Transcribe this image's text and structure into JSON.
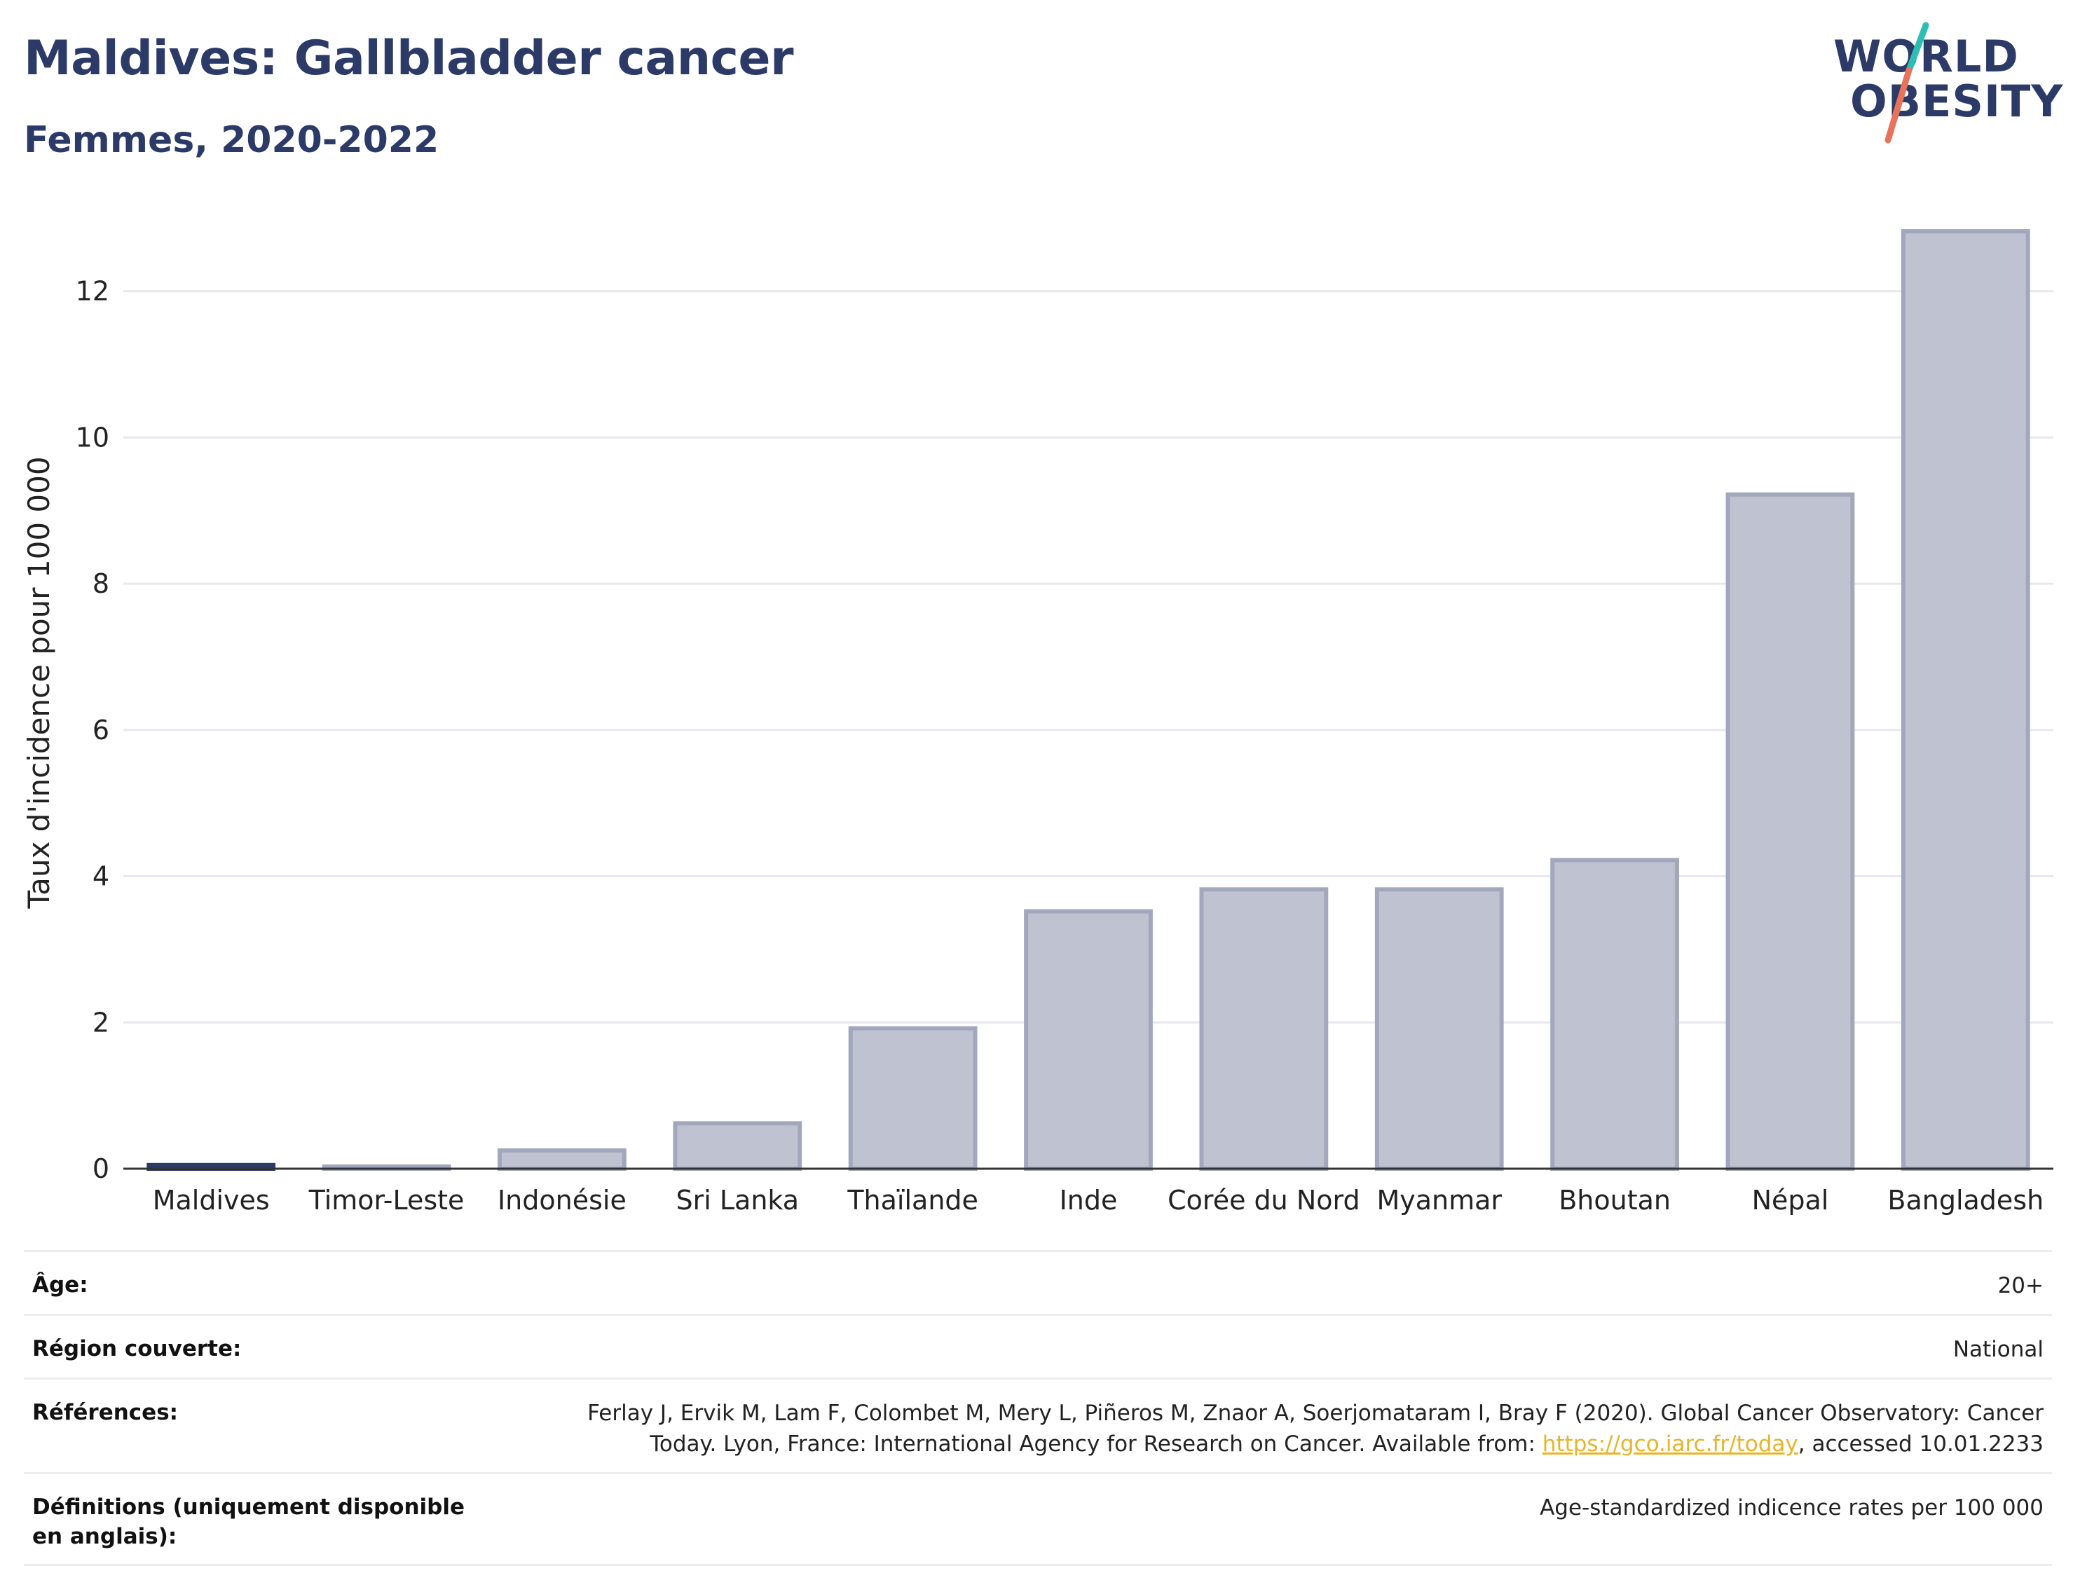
{
  "header": {
    "title": "Maldives: Gallbladder cancer",
    "subtitle": "Femmes, 2020-2022"
  },
  "logo": {
    "line1": "WORLD",
    "line2": "OBESITY",
    "colors": {
      "text": "#2b3a67",
      "slash_top": "#2bbfb3",
      "slash_bottom": "#e8735a"
    }
  },
  "chart_data": {
    "type": "bar",
    "categories": [
      "Maldives",
      "Timor-Leste",
      "Indonésie",
      "Sri Lanka",
      "Thaïlande",
      "Inde",
      "Corée du Nord",
      "Myanmar",
      "Bhoutan",
      "Népal",
      "Bangladesh"
    ],
    "values": [
      0.05,
      0.03,
      0.25,
      0.62,
      1.92,
      3.52,
      3.82,
      3.82,
      4.22,
      9.22,
      12.82
    ],
    "highlight": "Maldives",
    "ylabel": "Taux d'incidence pour 100 000",
    "ylim": [
      0,
      13.3
    ],
    "yticks": [
      0,
      2,
      4,
      6,
      8,
      10,
      12
    ],
    "grid": true,
    "colors": {
      "bar": "#bfc3d1",
      "bar_stroke": "#a1a7bc",
      "highlight": "#2b3a67",
      "grid": "#e8e8ee",
      "axis": "#333333"
    }
  },
  "meta": {
    "rows": [
      {
        "label": "Âge:",
        "value": "20+"
      },
      {
        "label": "Région couverte:",
        "value": "National"
      },
      {
        "label": "Références:",
        "value_before": "Ferlay J, Ervik M, Lam F, Colombet M, Mery L, Piñeros M, Znaor A, Soerjomataram I, Bray F (2020). Global Cancer Observatory: Cancer Today. Lyon, France: International Agency for Research on Cancer. Available from: ",
        "link": "https://gco.iarc.fr/today",
        "value_after": ", accessed 10.01.2233"
      },
      {
        "label": "Définitions (uniquement disponible en anglais):",
        "value": "Age-standardized indicence rates per 100 000"
      }
    ]
  }
}
